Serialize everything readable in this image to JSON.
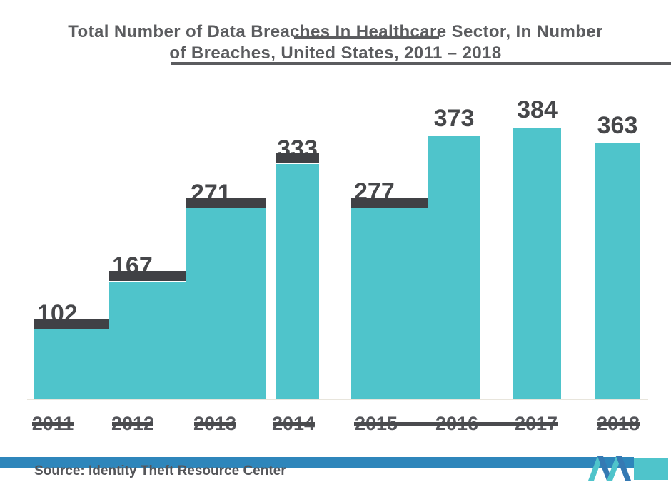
{
  "title": {
    "line1": "Total Number of Data Breaches In Healthcare Sector, In Number",
    "line2": "of Breaches, United States, 2011 – 2018"
  },
  "source_label": "Source: Identity Theft Resource Center",
  "chart_data": {
    "type": "bar",
    "title": "Total Number of Data Breaches In Healthcare Sector, In Number of Breaches, United States, 2011 – 2018",
    "categories": [
      "2011",
      "2012",
      "2013",
      "2014",
      "2015",
      "2016",
      "2017",
      "2018"
    ],
    "values": [
      102,
      167,
      271,
      333,
      277,
      373,
      384,
      363
    ],
    "series": [
      {
        "name": "Number of Breaches",
        "values": [
          102,
          167,
          271,
          333,
          277,
          373,
          384,
          363
        ]
      }
    ],
    "xlabel": "",
    "ylabel": "",
    "ylim": [
      0,
      400
    ],
    "grid": false,
    "legend": false,
    "bar_color": "#4FC4CB",
    "value_label_color": "#46474A",
    "partially_obscured_value_labels": [
      "102",
      "167",
      "271",
      "333",
      "277"
    ],
    "clearly_visible_value_labels": [
      "373",
      "384",
      "363"
    ]
  },
  "colors": {
    "bar_teal": "#4FC4CB",
    "title_gray": "#5B5C5F",
    "value_label_gray": "#46474A",
    "redaction_dark": "#404145",
    "source_band_blue": "#2E86BB",
    "logo_blue": "#3579B3",
    "axis_line": "#E8E5DC"
  },
  "logo": {
    "name": "Mordor Intelligence logo mark"
  }
}
